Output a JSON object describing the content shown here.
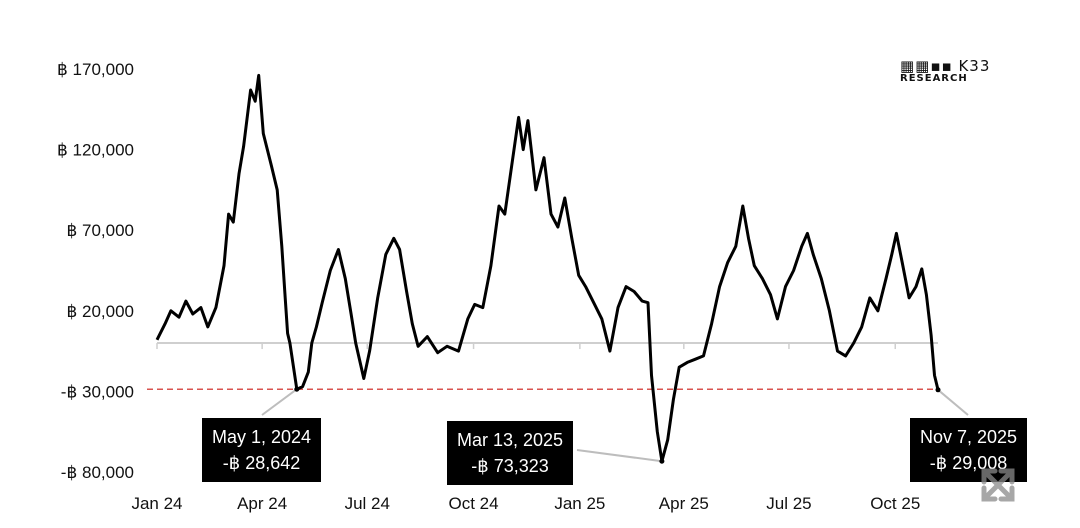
{
  "chart_data": {
    "type": "line",
    "currency_symbol": "฿",
    "yticks": [
      {
        "value": 170000,
        "label": "฿ 170,000"
      },
      {
        "value": 120000,
        "label": "฿ 120,000"
      },
      {
        "value": 70000,
        "label": "฿ 70,000"
      },
      {
        "value": 20000,
        "label": "฿ 20,000"
      },
      {
        "value": -30000,
        "label": "-฿ 30,000"
      },
      {
        "value": -80000,
        "label": "-฿ 80,000"
      }
    ],
    "xticks": [
      {
        "x": "2024-01-01",
        "label": "Jan 24"
      },
      {
        "x": "2024-04-01",
        "label": "Apr 24"
      },
      {
        "x": "2024-07-01",
        "label": "Jul 24"
      },
      {
        "x": "2024-10-01",
        "label": "Oct 24"
      },
      {
        "x": "2025-01-01",
        "label": "Jan 25"
      },
      {
        "x": "2025-04-01",
        "label": "Apr 25"
      },
      {
        "x": "2025-07-01",
        "label": "Jul 25"
      },
      {
        "x": "2025-10-01",
        "label": "Oct 25"
      }
    ],
    "xlim": [
      "2024-01-01",
      "2025-11-07"
    ],
    "ylim": [
      -80000,
      170000
    ],
    "reference_line": {
      "value": -28642,
      "style": "dashed",
      "color": "#d9534f"
    },
    "series": [
      {
        "color": "#000000",
        "points": [
          [
            "2024-01-01",
            2000
          ],
          [
            "2024-01-08",
            12000
          ],
          [
            "2024-01-13",
            20000
          ],
          [
            "2024-01-20",
            16000
          ],
          [
            "2024-01-26",
            26000
          ],
          [
            "2024-02-01",
            18000
          ],
          [
            "2024-02-08",
            22000
          ],
          [
            "2024-02-14",
            10000
          ],
          [
            "2024-02-21",
            22000
          ],
          [
            "2024-02-28",
            48000
          ],
          [
            "2024-03-03",
            80000
          ],
          [
            "2024-03-07",
            75000
          ],
          [
            "2024-03-12",
            105000
          ],
          [
            "2024-03-16",
            122000
          ],
          [
            "2024-03-22",
            157000
          ],
          [
            "2024-03-26",
            150000
          ],
          [
            "2024-03-29",
            166000
          ],
          [
            "2024-04-02",
            130000
          ],
          [
            "2024-04-09",
            110000
          ],
          [
            "2024-04-14",
            95000
          ],
          [
            "2024-04-18",
            60000
          ],
          [
            "2024-04-21",
            28000
          ],
          [
            "2024-04-23",
            6000
          ],
          [
            "2024-04-25",
            0
          ],
          [
            "2024-05-01",
            -28642
          ],
          [
            "2024-05-06",
            -27000
          ],
          [
            "2024-05-11",
            -18000
          ],
          [
            "2024-05-14",
            0
          ],
          [
            "2024-05-18",
            10000
          ],
          [
            "2024-05-23",
            25000
          ],
          [
            "2024-05-30",
            45000
          ],
          [
            "2024-06-06",
            58000
          ],
          [
            "2024-06-12",
            40000
          ],
          [
            "2024-06-17",
            18000
          ],
          [
            "2024-06-21",
            0
          ],
          [
            "2024-06-28",
            -22000
          ],
          [
            "2024-07-03",
            -5000
          ],
          [
            "2024-07-10",
            28000
          ],
          [
            "2024-07-17",
            55000
          ],
          [
            "2024-07-24",
            65000
          ],
          [
            "2024-07-29",
            58000
          ],
          [
            "2024-08-04",
            32000
          ],
          [
            "2024-08-09",
            12000
          ],
          [
            "2024-08-14",
            -2000
          ],
          [
            "2024-08-22",
            4000
          ],
          [
            "2024-08-31",
            -6000
          ],
          [
            "2024-09-08",
            -2000
          ],
          [
            "2024-09-18",
            -5000
          ],
          [
            "2024-09-26",
            15000
          ],
          [
            "2024-10-02",
            24000
          ],
          [
            "2024-10-09",
            22000
          ],
          [
            "2024-10-16",
            48000
          ],
          [
            "2024-10-23",
            85000
          ],
          [
            "2024-10-28",
            80000
          ],
          [
            "2024-11-03",
            110000
          ],
          [
            "2024-11-09",
            140000
          ],
          [
            "2024-11-13",
            120000
          ],
          [
            "2024-11-17",
            138000
          ],
          [
            "2024-11-24",
            95000
          ],
          [
            "2024-12-01",
            115000
          ],
          [
            "2024-12-07",
            80000
          ],
          [
            "2024-12-13",
            72000
          ],
          [
            "2024-12-19",
            90000
          ],
          [
            "2024-12-25",
            65000
          ],
          [
            "2024-12-31",
            42000
          ],
          [
            "2025-01-06",
            35000
          ],
          [
            "2025-01-13",
            25000
          ],
          [
            "2025-01-20",
            15000
          ],
          [
            "2025-01-27",
            -5000
          ],
          [
            "2025-02-03",
            22000
          ],
          [
            "2025-02-10",
            35000
          ],
          [
            "2025-02-17",
            32000
          ],
          [
            "2025-02-24",
            26000
          ],
          [
            "2025-03-01",
            25000
          ],
          [
            "2025-03-04",
            -20000
          ],
          [
            "2025-03-09",
            -55000
          ],
          [
            "2025-03-13",
            -73323
          ],
          [
            "2025-03-18",
            -60000
          ],
          [
            "2025-03-23",
            -35000
          ],
          [
            "2025-03-28",
            -15000
          ],
          [
            "2025-04-04",
            -12000
          ],
          [
            "2025-04-11",
            -10000
          ],
          [
            "2025-04-18",
            -8000
          ],
          [
            "2025-04-25",
            12000
          ],
          [
            "2025-05-02",
            35000
          ],
          [
            "2025-05-09",
            50000
          ],
          [
            "2025-05-16",
            60000
          ],
          [
            "2025-05-22",
            85000
          ],
          [
            "2025-05-27",
            65000
          ],
          [
            "2025-06-01",
            48000
          ],
          [
            "2025-06-08",
            40000
          ],
          [
            "2025-06-15",
            30000
          ],
          [
            "2025-06-21",
            15000
          ],
          [
            "2025-06-28",
            35000
          ],
          [
            "2025-07-05",
            45000
          ],
          [
            "2025-07-12",
            60000
          ],
          [
            "2025-07-17",
            68000
          ],
          [
            "2025-07-22",
            55000
          ],
          [
            "2025-07-29",
            40000
          ],
          [
            "2025-08-05",
            20000
          ],
          [
            "2025-08-12",
            -5000
          ],
          [
            "2025-08-19",
            -8000
          ],
          [
            "2025-08-26",
            0
          ],
          [
            "2025-09-02",
            10000
          ],
          [
            "2025-09-09",
            28000
          ],
          [
            "2025-09-16",
            20000
          ],
          [
            "2025-09-23",
            40000
          ],
          [
            "2025-09-28",
            55000
          ],
          [
            "2025-10-02",
            68000
          ],
          [
            "2025-10-07",
            50000
          ],
          [
            "2025-10-13",
            28000
          ],
          [
            "2025-10-19",
            35000
          ],
          [
            "2025-10-24",
            46000
          ],
          [
            "2025-10-28",
            30000
          ],
          [
            "2025-11-01",
            5000
          ],
          [
            "2025-11-04",
            -20000
          ],
          [
            "2025-11-07",
            -29008
          ]
        ]
      }
    ],
    "annotations": [
      {
        "date": "May 1, 2024",
        "value": "-฿ 28,642",
        "x": "2024-05-01",
        "y": -28642
      },
      {
        "date": "Mar 13, 2025",
        "value": "-฿ 73,323",
        "x": "2025-03-13",
        "y": -73323
      },
      {
        "date": "Nov 7, 2025",
        "value": "-฿ 29,008",
        "x": "2025-11-07",
        "y": -29008
      }
    ]
  },
  "logo": {
    "mark": "K33",
    "sub": "RESEARCH"
  },
  "expand_icon": "expand-arrows-icon"
}
